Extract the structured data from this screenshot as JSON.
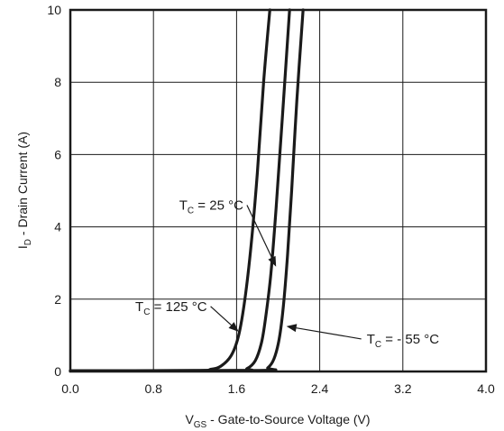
{
  "chart_data": {
    "type": "line",
    "xlabel": {
      "main": "V",
      "sub": "GS",
      "rest": " - Gate-to-Source Voltage (V)"
    },
    "ylabel": {
      "main": "I",
      "sub": "D",
      "rest": " - Drain Current (A)"
    },
    "xlim": [
      0.0,
      4.0
    ],
    "ylim": [
      0,
      10
    ],
    "xticks": [
      "0.0",
      "0.8",
      "1.6",
      "2.4",
      "3.2",
      "4.0"
    ],
    "yticks": [
      "0",
      "2",
      "4",
      "6",
      "8",
      "10"
    ],
    "grid": true,
    "series": [
      {
        "label": {
          "main": "T",
          "sub": "C",
          "rest": " = 125 °C"
        },
        "points": [
          [
            0.0,
            0.02
          ],
          [
            1.2,
            0.03
          ],
          [
            1.35,
            0.06
          ],
          [
            1.45,
            0.15
          ],
          [
            1.55,
            0.45
          ],
          [
            1.62,
            1.0
          ],
          [
            1.68,
            2.0
          ],
          [
            1.74,
            3.5
          ],
          [
            1.8,
            5.5
          ],
          [
            1.86,
            8.0
          ],
          [
            1.92,
            10.0
          ]
        ]
      },
      {
        "label": {
          "main": "T",
          "sub": "C",
          "rest": " = 25 °C"
        },
        "points": [
          [
            0.0,
            0.02
          ],
          [
            1.6,
            0.03
          ],
          [
            1.7,
            0.08
          ],
          [
            1.78,
            0.3
          ],
          [
            1.84,
            0.8
          ],
          [
            1.88,
            1.5
          ],
          [
            1.93,
            2.7
          ],
          [
            1.98,
            4.5
          ],
          [
            2.04,
            7.0
          ],
          [
            2.11,
            10.0
          ]
        ]
      },
      {
        "label": {
          "main": "T",
          "sub": "C",
          "rest": " = - 55 °C"
        },
        "points": [
          [
            0.0,
            0.02
          ],
          [
            1.82,
            0.03
          ],
          [
            1.9,
            0.1
          ],
          [
            1.96,
            0.35
          ],
          [
            2.01,
            0.9
          ],
          [
            2.05,
            1.8
          ],
          [
            2.09,
            3.2
          ],
          [
            2.13,
            5.0
          ],
          [
            2.18,
            7.5
          ],
          [
            2.24,
            10.0
          ]
        ]
      }
    ],
    "annotations": [
      {
        "series": 0,
        "anchor": [
          1.35,
          1.8
        ],
        "target": [
          1.62,
          1.1
        ]
      },
      {
        "series": 1,
        "anchor": [
          1.7,
          4.6
        ],
        "target": [
          1.98,
          2.9
        ]
      },
      {
        "series": 2,
        "anchor": [
          2.8,
          0.9
        ],
        "target": [
          2.08,
          1.25
        ]
      }
    ]
  }
}
